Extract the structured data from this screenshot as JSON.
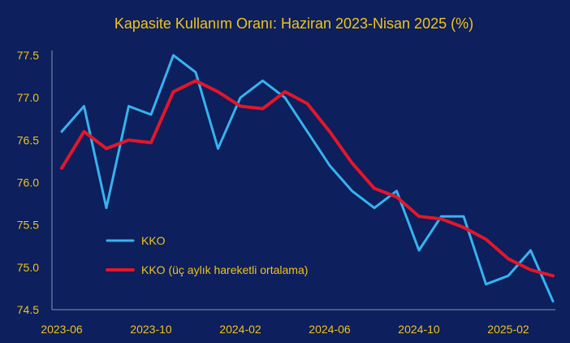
{
  "chart_data": {
    "type": "line",
    "title": "Kapasite Kullanım Oranı: Haziran 2023-Nisan 2025 (%)",
    "xlabel": "",
    "ylabel": "",
    "ylim": [
      74.5,
      77.5
    ],
    "yticks": [
      "77.5",
      "77.0",
      "76.5",
      "76.0",
      "75.5",
      "75.0",
      "74.5"
    ],
    "xtick_labels": [
      "2023-06",
      "2023-10",
      "2024-02",
      "2024-06",
      "2024-10",
      "2025-02"
    ],
    "x": [
      "2023-06",
      "2023-07",
      "2023-08",
      "2023-09",
      "2023-10",
      "2023-11",
      "2023-12",
      "2024-01",
      "2024-02",
      "2024-03",
      "2024-04",
      "2024-05",
      "2024-06",
      "2024-07",
      "2024-08",
      "2024-09",
      "2024-10",
      "2024-11",
      "2024-12",
      "2025-01",
      "2025-02",
      "2025-03",
      "2025-04"
    ],
    "grid": false,
    "legend_position": "bottom-left",
    "series": [
      {
        "name": "KKO",
        "color": "#36b3f0",
        "values": [
          76.6,
          76.9,
          75.7,
          76.9,
          76.8,
          77.5,
          77.3,
          76.4,
          77.0,
          77.2,
          77.0,
          76.6,
          76.2,
          75.9,
          75.7,
          75.9,
          75.2,
          75.6,
          75.6,
          74.8,
          74.9,
          75.2,
          74.6
        ]
      },
      {
        "name": "KKO (üç aylık hareketli ortalama)",
        "color": "#e3162a",
        "values": [
          76.17,
          76.6,
          76.4,
          76.5,
          76.47,
          77.07,
          77.2,
          77.07,
          76.9,
          76.87,
          77.07,
          76.93,
          76.6,
          76.23,
          75.93,
          75.83,
          75.6,
          75.57,
          75.47,
          75.33,
          75.1,
          74.97,
          74.9
        ]
      }
    ]
  }
}
